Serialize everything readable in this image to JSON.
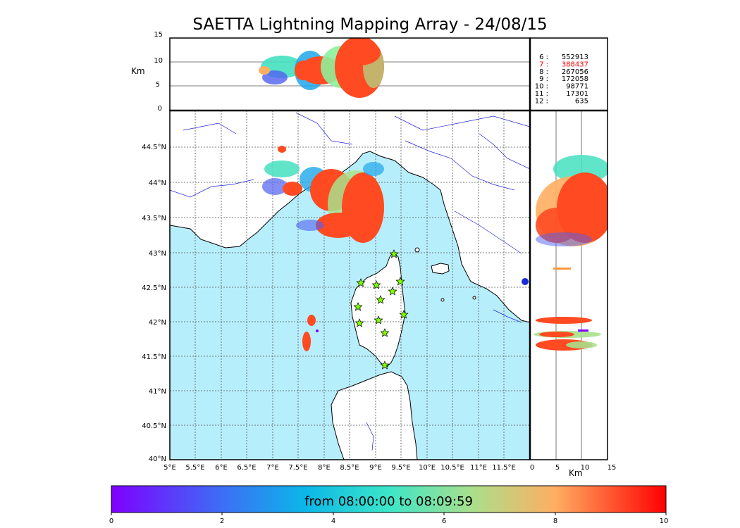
{
  "title": "SAETTA Lightning Mapping Array - 24/08/15",
  "altitude_axis": {
    "label": "Km",
    "ticks": [
      "0",
      "5",
      "10",
      "15"
    ]
  },
  "lon_axis": [
    "5°E",
    "5.5°E",
    "6°E",
    "6.5°E",
    "7°E",
    "7.5°E",
    "8°E",
    "8.5°E",
    "9°E",
    "9.5°E",
    "10°E",
    "10.5°E",
    "11°E",
    "11.5°E"
  ],
  "lat_axis": [
    "40°N",
    "40.5°N",
    "41°N",
    "41.5°N",
    "42°N",
    "42.5°N",
    "43°N",
    "43.5°N",
    "44°N",
    "44.5°N"
  ],
  "side_axis": {
    "label": "Km",
    "ticks": [
      "0",
      "5",
      "10",
      "15"
    ]
  },
  "station_counts": [
    {
      "station": "6",
      "count": "552913",
      "color": "#000000"
    },
    {
      "station": "7",
      "count": "388437",
      "color": "#ff0000"
    },
    {
      "station": "8",
      "count": "267056",
      "color": "#000000"
    },
    {
      "station": "9",
      "count": "172058",
      "color": "#000000"
    },
    {
      "station": "10",
      "count": "98771",
      "color": "#000000"
    },
    {
      "station": "11",
      "count": "17301",
      "color": "#000000"
    },
    {
      "station": "12",
      "count": "635",
      "color": "#000000"
    }
  ],
  "colorbar": {
    "label": "from 08:00:00 to 08:09:59",
    "ticks": [
      "0",
      "2",
      "4",
      "6",
      "8",
      "10"
    ]
  },
  "colors": {
    "sea": "#b7eefc",
    "coast": "#000000",
    "rivers": "#2222dd",
    "grid": "#555555",
    "station_marker": "#7fff00",
    "lightning_main": "#ff4a22"
  }
}
